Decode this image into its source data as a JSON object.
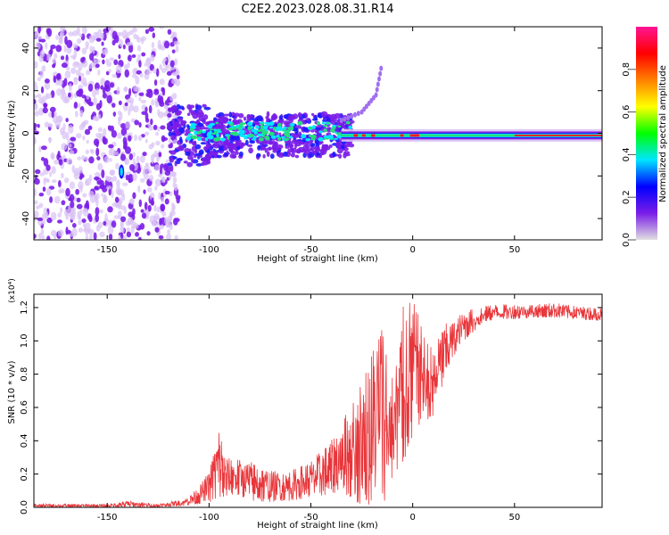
{
  "title": "C2E2.2023.028.08.31.R14",
  "colors": {
    "snr_line": "#e8363a",
    "spectral_dots": "#7a1de8",
    "spectral_light": "#d9c2f5",
    "spectral_mid": "#00e5ff",
    "spectral_high": "#ff2020"
  },
  "chart_data": [
    {
      "type": "heatmap",
      "xlabel": "Height of straight line (km)",
      "ylabel": "Frequency (Hz)",
      "xlim": [
        -186,
        93
      ],
      "ylim": [
        -50,
        50
      ],
      "xticks": [
        -150,
        -100,
        -50,
        0,
        50
      ],
      "yticks": [
        -40,
        -20,
        0,
        20,
        40
      ],
      "features": {
        "noise_region_x": [
          -186,
          -115
        ],
        "main_band_x": [
          -115,
          93
        ],
        "main_band_center_hz": -1,
        "rising_branch": [
          [
            -35,
            6
          ],
          [
            -25,
            10
          ],
          [
            -18,
            18
          ],
          [
            -15,
            33
          ]
        ],
        "blue_blob": {
          "x": -143,
          "y": -18
        }
      }
    },
    {
      "type": "colorbar",
      "label": "Normalized spectral amplitude",
      "range": [
        0.0,
        1.0
      ],
      "ticks": [
        0.0,
        0.2,
        0.4,
        0.6,
        0.8
      ],
      "stops": [
        "#e0e0e0",
        "#7a1de8",
        "#0000ff",
        "#00e5ff",
        "#00ff00",
        "#ffff00",
        "#ff8000",
        "#ff0000",
        "#ff1493"
      ]
    },
    {
      "type": "line",
      "xlabel": "Height of straight line (km)",
      "ylabel": "SNR (10 * v/v)",
      "scale_label": "(x10⁴)",
      "xlim": [
        -186,
        93
      ],
      "ylim": [
        0,
        1.28
      ],
      "xticks": [
        -150,
        -100,
        -50,
        0,
        50
      ],
      "yticks": [
        0.0,
        0.2,
        0.4,
        0.6,
        0.8,
        1.0,
        1.2
      ],
      "envelope": {
        "x": [
          -186,
          -150,
          -140,
          -125,
          -112,
          -105,
          -100,
          -95,
          -92,
          -88,
          -80,
          -70,
          -60,
          -50,
          -40,
          -35,
          -30,
          -25,
          -20,
          -15,
          -10,
          -5,
          0,
          5,
          10,
          15,
          20,
          25,
          30,
          35,
          40,
          50,
          60,
          70,
          80,
          93
        ],
        "lower": [
          0.0,
          0.0,
          0.0,
          0.0,
          0.01,
          0.02,
          0.03,
          0.05,
          0.05,
          0.08,
          0.04,
          0.03,
          0.04,
          0.06,
          0.08,
          0.1,
          0.05,
          0.0,
          0.0,
          0.0,
          0.02,
          0.25,
          0.4,
          0.55,
          0.5,
          0.75,
          0.9,
          1.0,
          1.05,
          1.1,
          1.13,
          1.13,
          1.14,
          1.14,
          1.13,
          1.12
        ],
        "upper": [
          0.02,
          0.02,
          0.04,
          0.02,
          0.05,
          0.12,
          0.22,
          0.5,
          0.3,
          0.3,
          0.28,
          0.22,
          0.22,
          0.28,
          0.4,
          0.5,
          0.65,
          0.78,
          0.95,
          1.22,
          0.85,
          1.2,
          1.28,
          1.05,
          0.95,
          1.1,
          1.12,
          1.18,
          1.2,
          1.21,
          1.22,
          1.22,
          1.22,
          1.23,
          1.21,
          1.2
        ]
      }
    }
  ]
}
